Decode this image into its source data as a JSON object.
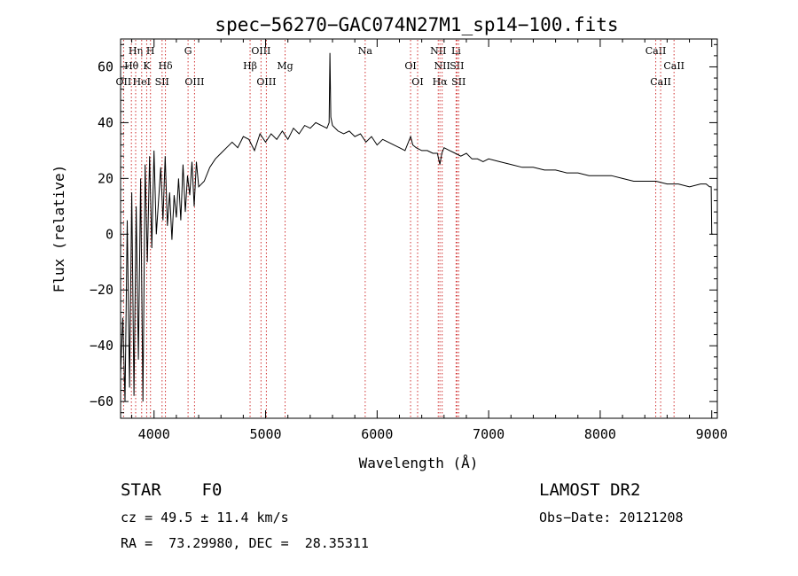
{
  "chart_data": {
    "type": "line",
    "title": "spec−56270−GAC074N27M1_sp14−100.fits",
    "xlabel": "Wavelength (Å)",
    "ylabel": "Flux (relative)",
    "xlim": [
      3700,
      9050
    ],
    "ylim": [
      -66,
      70
    ],
    "xticks": [
      4000,
      5000,
      6000,
      7000,
      8000,
      9000
    ],
    "yticks": [
      -60,
      -40,
      -20,
      0,
      20,
      40,
      60
    ],
    "grid": false,
    "line_markers": [
      {
        "label": "OII",
        "wavelength": 3727,
        "row": 3
      },
      {
        "label": "Hη",
        "wavelength": 3835,
        "row": 1
      },
      {
        "label": "Hθ",
        "wavelength": 3797,
        "row": 2
      },
      {
        "label": "H",
        "wavelength": 3968,
        "row": 1
      },
      {
        "label": "K",
        "wavelength": 3934,
        "row": 2
      },
      {
        "label": "HeI",
        "wavelength": 3889,
        "row": 3
      },
      {
        "label": "SII",
        "wavelength": 4072,
        "row": 3
      },
      {
        "label": "Hδ",
        "wavelength": 4102,
        "row": 2
      },
      {
        "label": "G",
        "wavelength": 4305,
        "row": 1
      },
      {
        "label": "OIII",
        "wavelength": 4363,
        "row": 3
      },
      {
        "label": "OIII",
        "wavelength": 4959,
        "row": 1
      },
      {
        "label": "Hβ",
        "wavelength": 4861,
        "row": 2
      },
      {
        "label": "OIII",
        "wavelength": 5007,
        "row": 3
      },
      {
        "label": "Mg",
        "wavelength": 5175,
        "row": 2
      },
      {
        "label": "Na",
        "wavelength": 5893,
        "row": 1
      },
      {
        "label": "OI",
        "wavelength": 6300,
        "row": 2
      },
      {
        "label": "OI",
        "wavelength": 6363,
        "row": 3
      },
      {
        "label": "NII",
        "wavelength": 6548,
        "row": 1
      },
      {
        "label": "NII",
        "wavelength": 6583,
        "row": 2
      },
      {
        "label": "Hα",
        "wavelength": 6563,
        "row": 3
      },
      {
        "label": "Li",
        "wavelength": 6708,
        "row": 1
      },
      {
        "label": "SII",
        "wavelength": 6716,
        "row": 2
      },
      {
        "label": "SII",
        "wavelength": 6731,
        "row": 3
      },
      {
        "label": "CaII",
        "wavelength": 8498,
        "row": 1
      },
      {
        "label": "CaII",
        "wavelength": 8542,
        "row": 3
      },
      {
        "label": "CaII",
        "wavelength": 8662,
        "row": 2
      }
    ],
    "series": [
      {
        "x": [
          3700,
          3720,
          3740,
          3760,
          3780,
          3800,
          3820,
          3840,
          3860,
          3880,
          3900,
          3920,
          3940,
          3960,
          3980,
          4000,
          4020,
          4040,
          4060,
          4080,
          4100,
          4120,
          4140,
          4160,
          4180,
          4200,
          4220,
          4240,
          4260,
          4280,
          4300,
          4320,
          4340,
          4360,
          4380,
          4400,
          4450,
          4500,
          4550,
          4600,
          4650,
          4700,
          4750,
          4800,
          4850,
          4900,
          4950,
          5000,
          5050,
          5100,
          5150,
          5200,
          5250,
          5300,
          5350,
          5400,
          5450,
          5500,
          5550,
          5570,
          5577,
          5585,
          5600,
          5650,
          5700,
          5750,
          5800,
          5850,
          5900,
          5950,
          6000,
          6050,
          6100,
          6150,
          6200,
          6250,
          6300,
          6320,
          6350,
          6400,
          6450,
          6500,
          6540,
          6563,
          6580,
          6600,
          6650,
          6700,
          6750,
          6800,
          6850,
          6900,
          6950,
          7000,
          7100,
          7200,
          7300,
          7400,
          7500,
          7600,
          7700,
          7800,
          7900,
          8000,
          8100,
          8200,
          8300,
          8400,
          8500,
          8600,
          8700,
          8800,
          8900,
          8950,
          8980,
          8995,
          9000,
          9010
        ],
        "y": [
          -50,
          -30,
          -60,
          5,
          -55,
          15,
          -58,
          10,
          -45,
          20,
          -60,
          25,
          -10,
          28,
          -5,
          30,
          0,
          12,
          24,
          5,
          28,
          3,
          15,
          -2,
          14,
          6,
          20,
          5,
          25,
          8,
          21,
          14,
          26,
          10,
          26,
          17,
          19,
          24,
          27,
          29,
          31,
          33,
          31,
          35,
          34,
          30,
          36,
          33,
          36,
          34,
          37,
          34,
          38,
          36,
          39,
          38,
          40,
          39,
          38,
          40,
          65,
          42,
          39,
          37,
          36,
          37,
          35,
          36,
          33,
          35,
          32,
          34,
          33,
          32,
          31,
          30,
          35,
          32,
          31,
          30,
          30,
          29,
          29,
          25,
          29,
          31,
          30,
          29,
          28,
          29,
          27,
          27,
          26,
          27,
          26,
          25,
          24,
          24,
          23,
          23,
          22,
          22,
          21,
          21,
          21,
          20,
          19,
          19,
          19,
          18,
          18,
          17,
          18,
          18,
          17,
          17,
          0,
          0
        ]
      }
    ]
  },
  "info": {
    "object": "STAR    F0",
    "survey": "LAMOST DR2",
    "cz": "cz = 49.5 ± 11.4 km/s",
    "obs_date": "Obs−Date: 20121208",
    "radec": "RA =  73.29980, DEC =  28.35311"
  }
}
